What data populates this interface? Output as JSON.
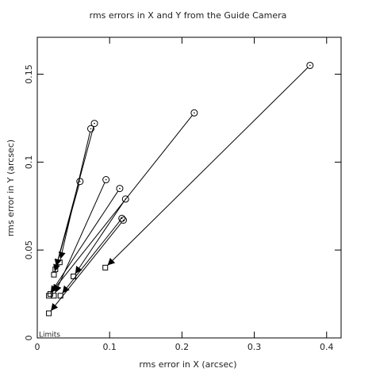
{
  "chart_data": {
    "type": "scatter",
    "title": "rms errors in X and Y from the Guide Camera",
    "xlabel": "rms error in X (arcsec)",
    "ylabel": "rms error in Y (arcsec)",
    "annotation": "Limits",
    "xlim": [
      0,
      0.42
    ],
    "ylim": [
      0,
      0.171
    ],
    "xticks": [
      0,
      0.1,
      0.2,
      0.3,
      0.4
    ],
    "yticks": [
      0,
      0.05,
      0.1,
      0.15
    ],
    "series": [
      {
        "marker": "circle",
        "color": "#000000",
        "x": [
          0.377,
          0.217,
          0.079,
          0.074,
          0.059,
          0.095,
          0.114,
          0.122,
          0.117,
          0.119
        ],
        "values": [
          0.155,
          0.128,
          0.122,
          0.119,
          0.089,
          0.09,
          0.085,
          0.079,
          0.068,
          0.067
        ]
      },
      {
        "marker": "square",
        "color": "#000000",
        "x": [
          0.094,
          0.018,
          0.025,
          0.031,
          0.023,
          0.023,
          0.016,
          0.05,
          0.032,
          0.016
        ],
        "values": [
          0.04,
          0.025,
          0.039,
          0.043,
          0.036,
          0.024,
          0.024,
          0.035,
          0.024,
          0.014
        ]
      }
    ]
  }
}
